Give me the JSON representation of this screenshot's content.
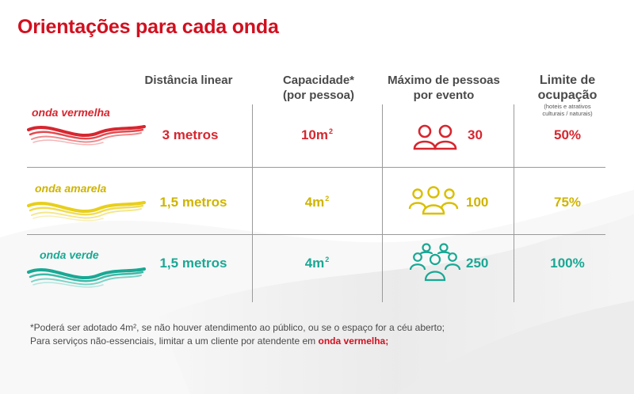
{
  "title": "Orientações para cada onda",
  "headers": {
    "distance": "Distância linear",
    "capacity_line1": "Capacidade*",
    "capacity_line2": "(por pessoa)",
    "max_people_line1": "Máximo de pessoas",
    "max_people_line2": "por evento",
    "occupancy_line1": "Limite de",
    "occupancy_line2": "ocupação",
    "occupancy_note_line1": "(hoteis e atrativos",
    "occupancy_note_line2": "culturais / naturais)"
  },
  "rows": [
    {
      "wave": "onda vermelha",
      "color": "#d7262f",
      "distance": "3 metros",
      "capacity": "10m",
      "capacity_sup": "2",
      "max_people": "30",
      "people_icon": "two-people-icon",
      "occupancy": "50%"
    },
    {
      "wave": "onda amarela",
      "color": "#cfb400",
      "distance": "1,5 metros",
      "capacity": "4m",
      "capacity_sup": "2",
      "max_people": "100",
      "people_icon": "group-people-icon",
      "occupancy": "75%"
    },
    {
      "wave": "onda verde",
      "color": "#19a894",
      "distance": "1,5 metros",
      "capacity": "4m",
      "capacity_sup": "2",
      "max_people": "250",
      "people_icon": "crowd-people-icon",
      "occupancy": "100%"
    }
  ],
  "footnote": {
    "line1": "*Poderá ser adotado 4m², se não houver atendimento ao público, ou se o espaço for a céu aberto;",
    "line2_prefix": "Para serviços não-essenciais, limitar a um cliente por atendente em ",
    "line2_highlight": "onda vermelha;"
  }
}
